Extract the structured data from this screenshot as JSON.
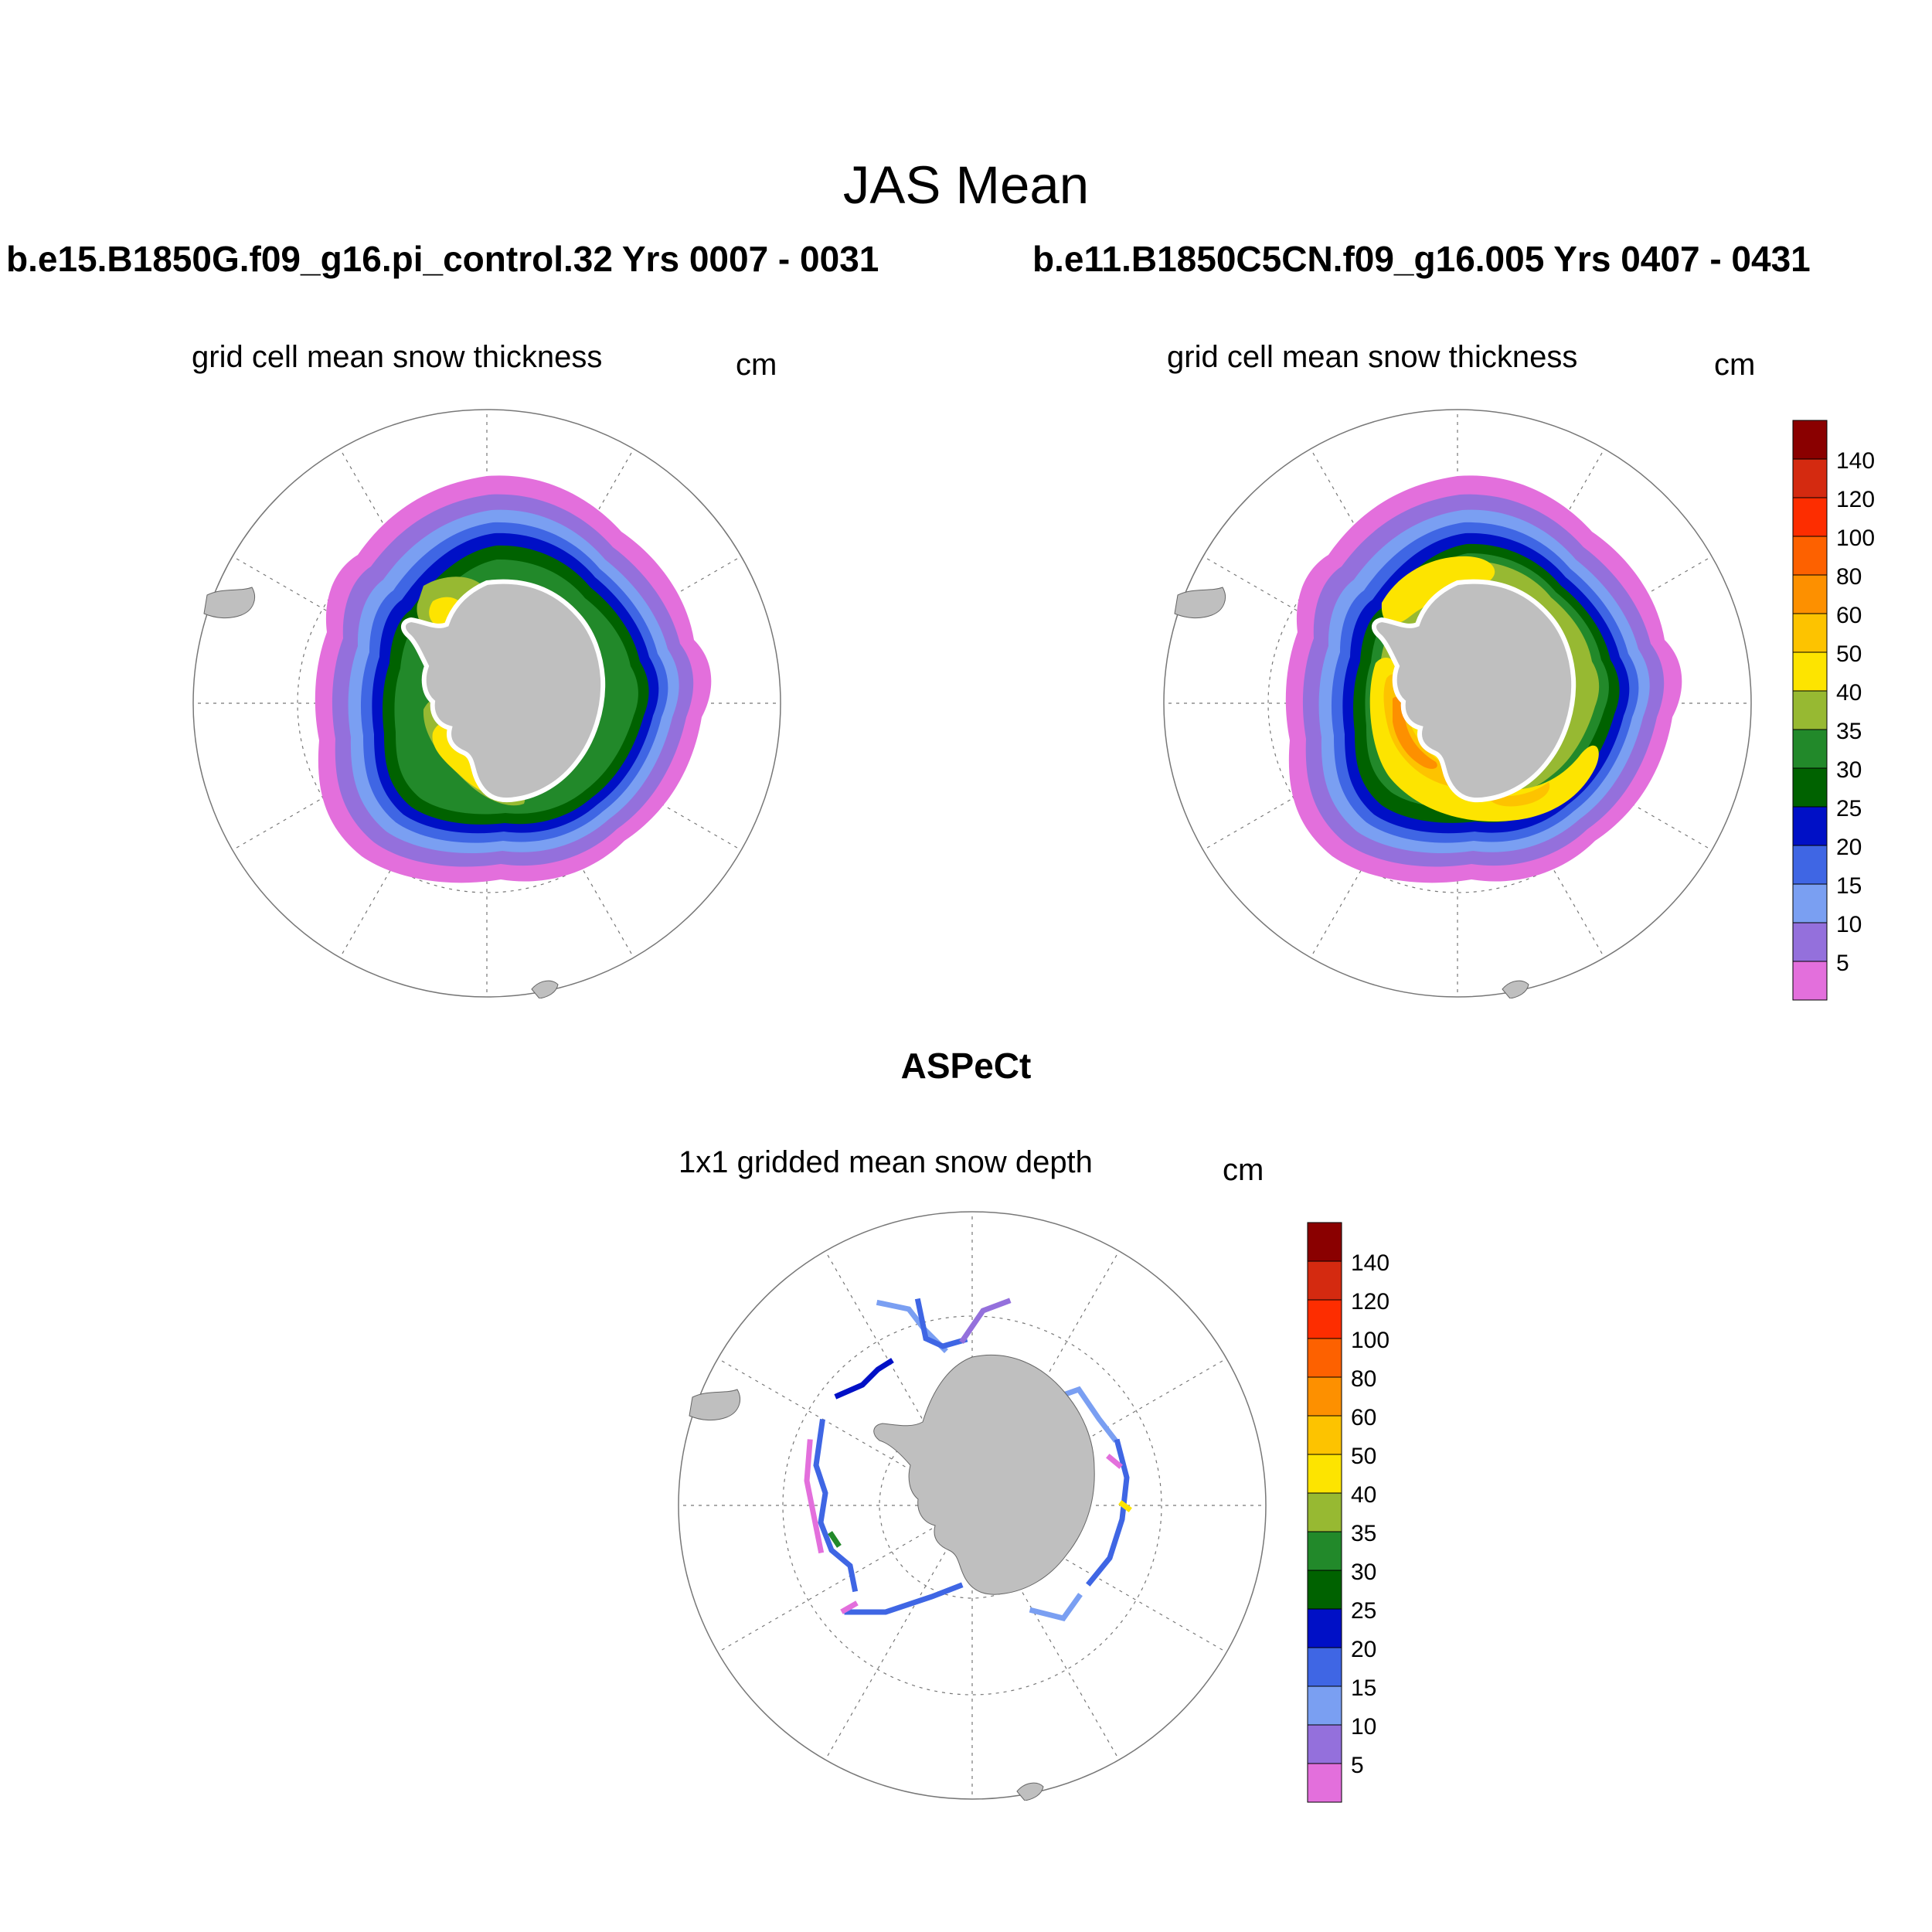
{
  "title": "JAS Mean",
  "left_panel": {
    "heading": "b.e15.B1850G.f09_g16.pi_control.32  Yrs 0007 - 0031",
    "variable": "grid cell mean snow thickness",
    "units": "cm"
  },
  "right_panel": {
    "heading": "b.e11.B1850C5CN.f09_g16.005  Yrs 0407 - 0431",
    "variable": "grid cell mean snow thickness",
    "units": "cm"
  },
  "bottom_panel": {
    "heading": "ASPeCt",
    "variable": "1x1 gridded mean snow depth",
    "units": "cm"
  },
  "colorbar": {
    "labels": [
      "5",
      "10",
      "15",
      "20",
      "25",
      "30",
      "35",
      "40",
      "50",
      "60",
      "80",
      "100",
      "120",
      "140"
    ],
    "colors": [
      "#e36fdc",
      "#9470dc",
      "#7a9ff2",
      "#3f66e4",
      "#0010c6",
      "#006200",
      "#22892a",
      "#97b932",
      "#fde400",
      "#fdc300",
      "#fd9000",
      "#fd6100",
      "#fd2d00",
      "#d42a10",
      "#8a0000"
    ]
  },
  "map_style": {
    "land_color": "#bfbfbf",
    "ice_shelf_color": "#ffffff",
    "grid_color": "#777777"
  }
}
